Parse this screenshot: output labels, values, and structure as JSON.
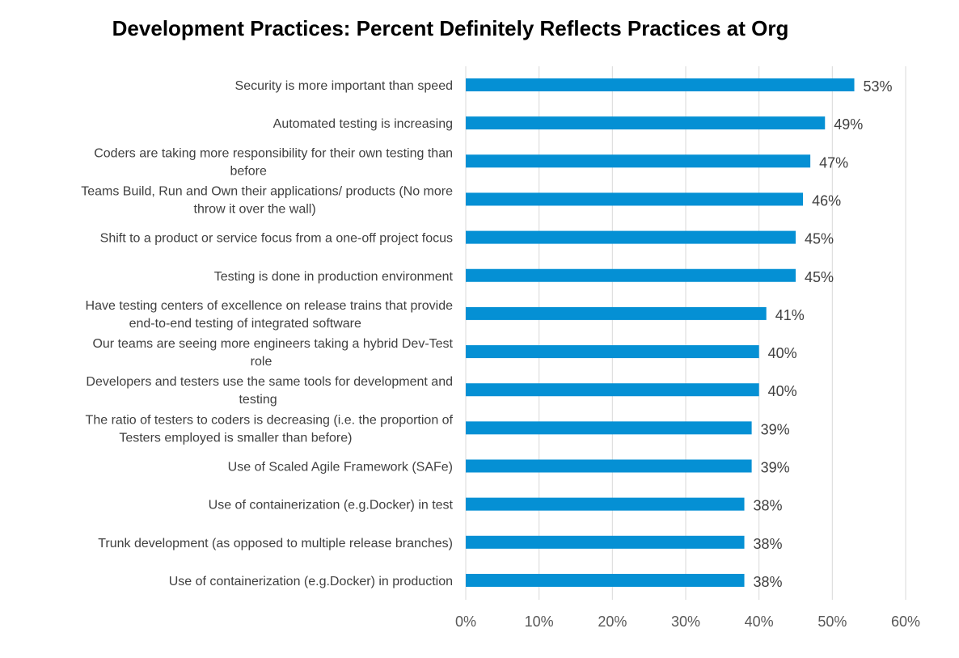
{
  "chart_data": {
    "type": "bar",
    "orientation": "horizontal",
    "title": "Development Practices: Percent Definitely Reflects Practices at Org",
    "categories": [
      "Security is more important than speed",
      "Automated testing is increasing",
      "Coders are taking more responsibility for their own testing than before",
      "Teams Build, Run and Own their applications/ products (No more throw it over the wall)",
      "Shift to a product or service focus from a one-off project focus",
      "Testing is done in production environment",
      "Have testing centers of excellence on release trains that provide end-to-end testing of integrated software",
      "Our teams are seeing more engineers taking a hybrid Dev-Test role",
      "Developers and testers use the same tools for development and testing",
      "The ratio of testers to coders is decreasing (i.e. the proportion of Testers employed is smaller than before)",
      "Use of Scaled Agile Framework (SAFe)",
      "Use of containerization (e.g.Docker) in test",
      "Trunk development (as opposed to multiple release branches)",
      "Use of containerization (e.g.Docker) in production"
    ],
    "category_label_lines": [
      [
        "Security is more important than speed"
      ],
      [
        "Automated testing is increasing"
      ],
      [
        "Coders are taking more responsibility for their own testing than",
        "before"
      ],
      [
        "Teams Build, Run and Own their applications/ products (No more",
        "throw it over the wall)"
      ],
      [
        "Shift to a product or service focus from a one-off project focus"
      ],
      [
        "Testing is done in production environment"
      ],
      [
        "Have testing centers of excellence on release trains that provide",
        "end-to-end testing of integrated software"
      ],
      [
        "Our teams are seeing more engineers taking a hybrid Dev-Test",
        "role"
      ],
      [
        "Developers and testers use the same tools for development and",
        "testing"
      ],
      [
        "The ratio of testers to coders is decreasing (i.e. the proportion of",
        "Testers employed is smaller than before)"
      ],
      [
        "Use of Scaled Agile Framework (SAFe)"
      ],
      [
        "Use of containerization (e.g.Docker) in test"
      ],
      [
        "Trunk development (as opposed to multiple release branches)"
      ],
      [
        "Use of containerization (e.g.Docker) in production"
      ]
    ],
    "values": [
      53,
      49,
      47,
      46,
      45,
      45,
      41,
      40,
      40,
      39,
      39,
      38,
      38,
      38
    ],
    "value_labels": [
      "53%",
      "49%",
      "47%",
      "46%",
      "45%",
      "45%",
      "41%",
      "40%",
      "40%",
      "39%",
      "39%",
      "38%",
      "38%",
      "38%"
    ],
    "xlim": [
      0,
      60
    ],
    "xticks": [
      0,
      10,
      20,
      30,
      40,
      50,
      60
    ],
    "xtick_labels": [
      "0%",
      "10%",
      "20%",
      "30%",
      "40%",
      "50%",
      "60%"
    ],
    "xlabel": "",
    "ylabel": "",
    "grid": "vertical",
    "legend": "none",
    "bar_color": "#0590d4",
    "grid_color": "#d9d9d9"
  }
}
